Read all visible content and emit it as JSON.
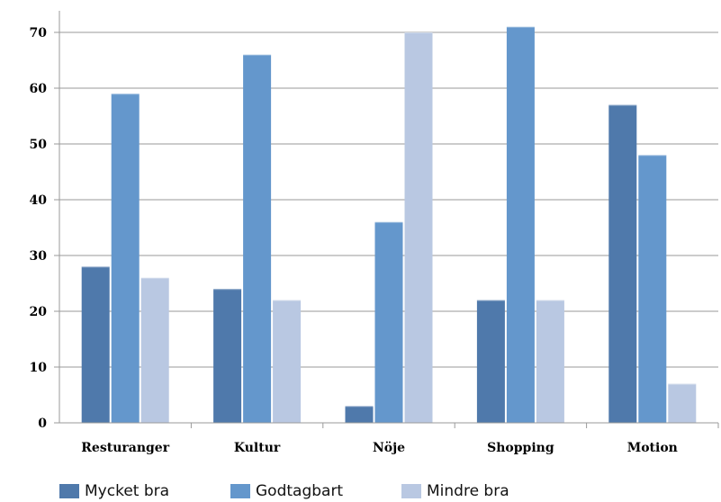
{
  "chart_data": {
    "type": "bar",
    "title": "",
    "xlabel": "",
    "ylabel": "",
    "categories": [
      "Resturanger",
      "Kultur",
      "Nöje",
      "Shopping",
      "Motion"
    ],
    "series": [
      {
        "name": "Mycket bra",
        "color": "#4f79ab",
        "values": [
          28,
          24,
          3,
          22,
          57
        ]
      },
      {
        "name": "Godtagbart",
        "color": "#6497cc",
        "values": [
          59,
          66,
          36,
          71,
          48
        ]
      },
      {
        "name": "Mindre bra",
        "color": "#b9c8e2",
        "values": [
          26,
          22,
          70,
          22,
          7
        ]
      }
    ],
    "ylim": [
      0,
      70
    ],
    "yticks": [
      0,
      10,
      20,
      30,
      40,
      50,
      60,
      70
    ],
    "grid": true,
    "legend": "bottom"
  }
}
